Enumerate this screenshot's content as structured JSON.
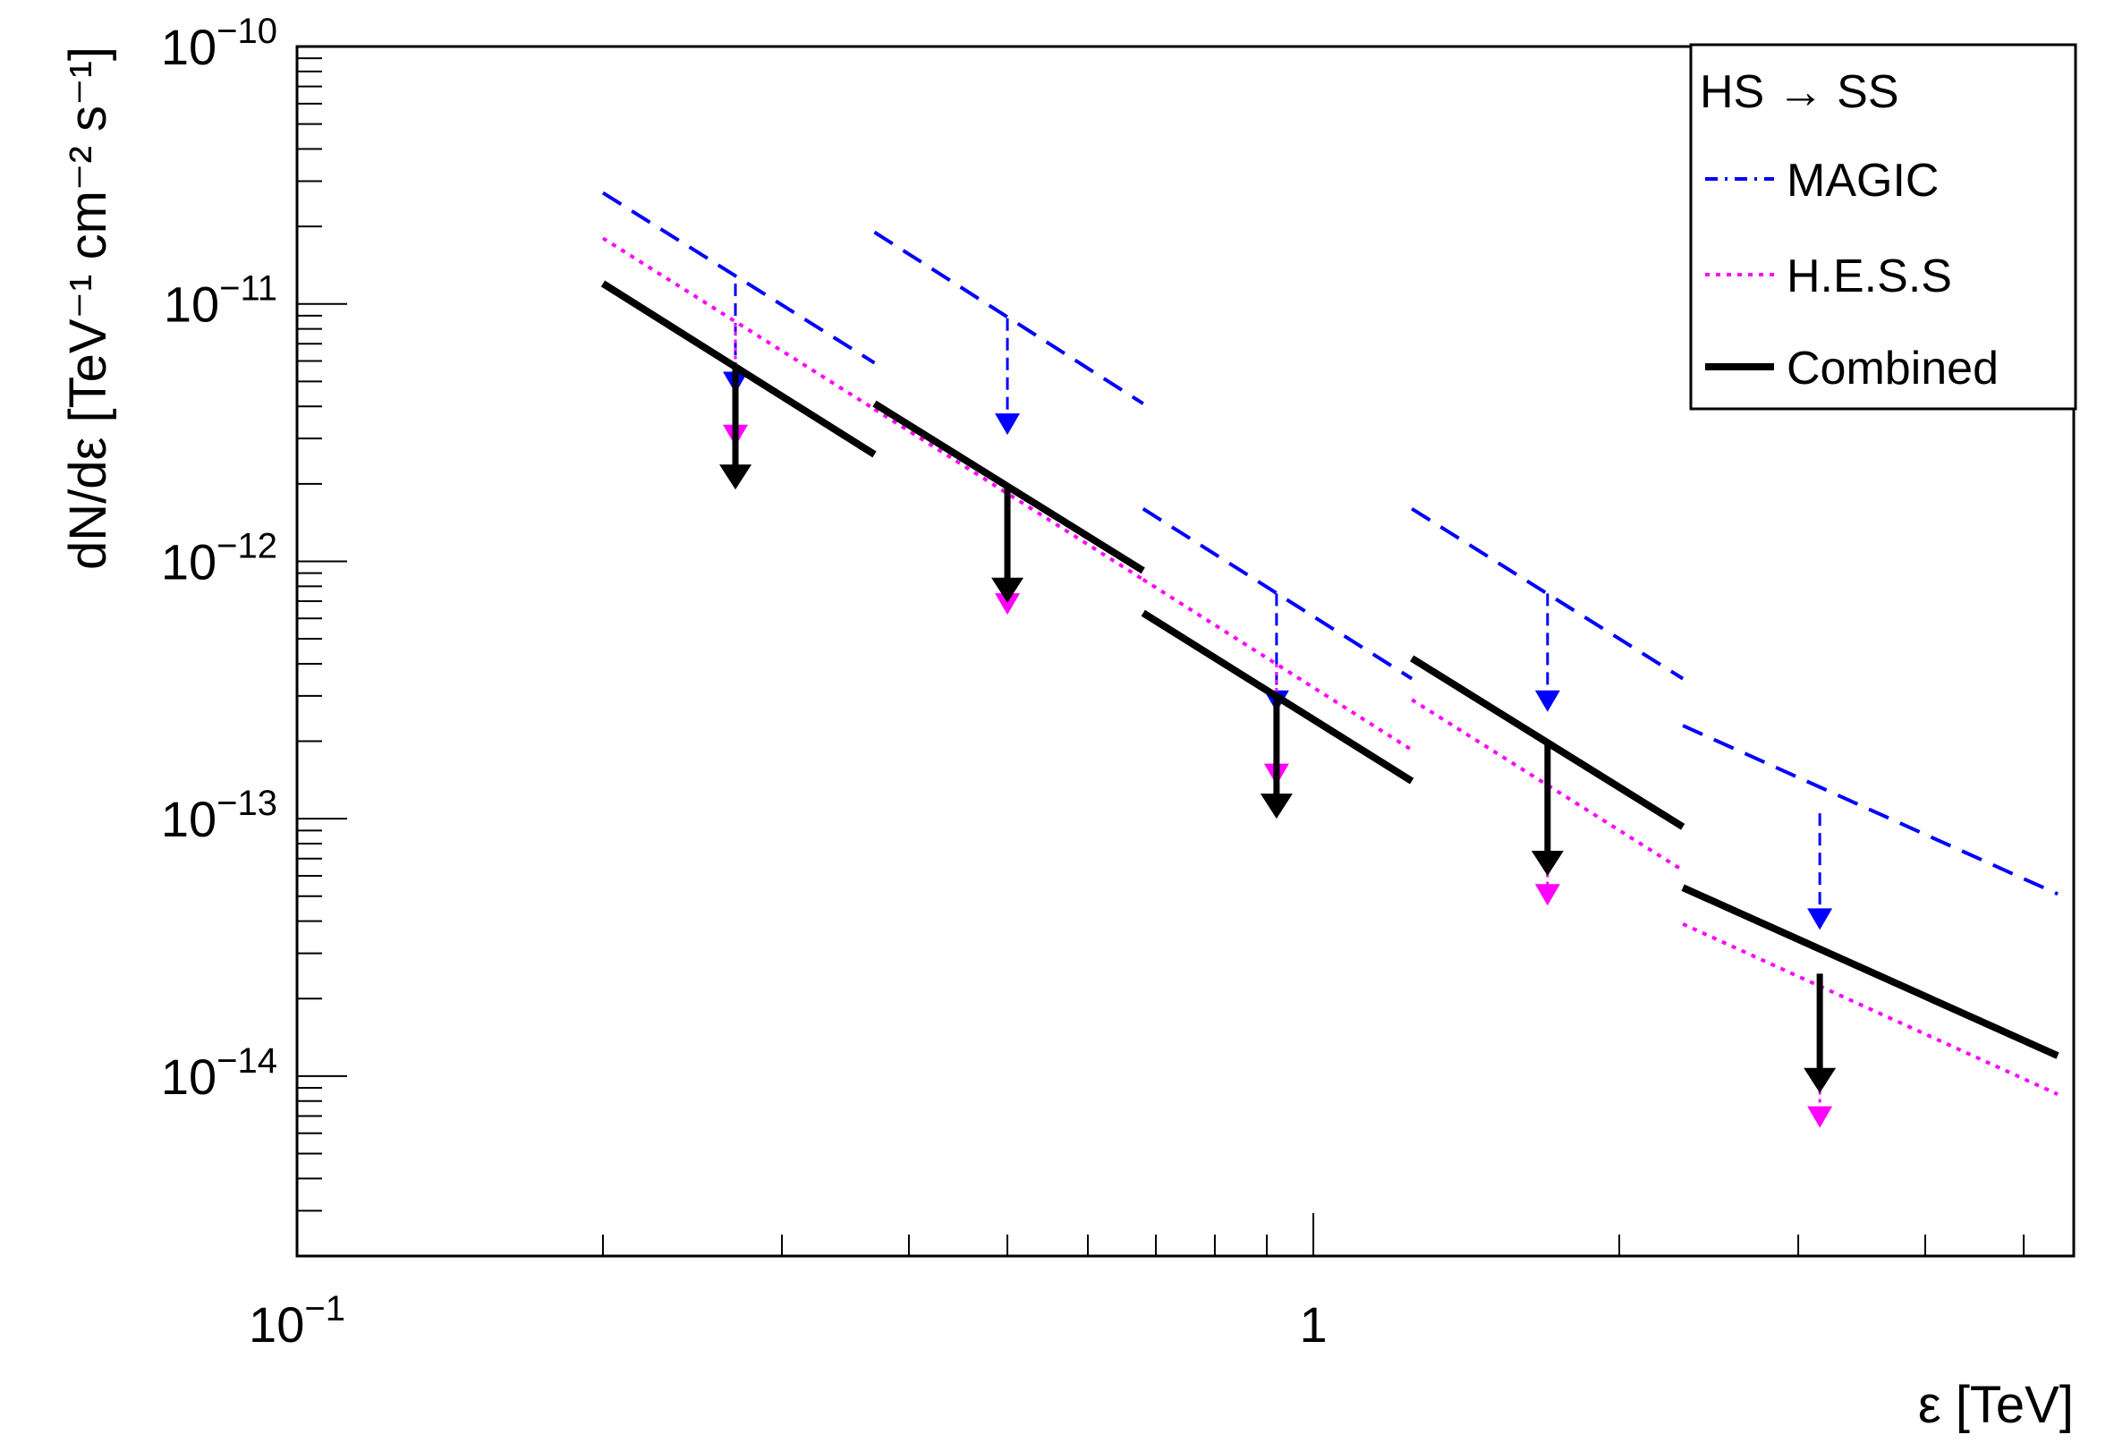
{
  "chart_data": {
    "type": "line",
    "xlabel": "ε [TeV]",
    "ylabel": "dN/dε [TeV⁻¹ cm⁻² s⁻¹]",
    "x_scale": "log",
    "y_scale": "log",
    "xlim": [
      0.1,
      5.6
    ],
    "ylim": [
      2e-15,
      1e-10
    ],
    "x_ticks": [
      {
        "value": 0.1,
        "base": "10",
        "exp": "−1"
      },
      {
        "value": 1,
        "base": "1",
        "exp": ""
      }
    ],
    "y_ticks": [
      {
        "value": 1e-10,
        "base": "10",
        "exp": "−10"
      },
      {
        "value": 1e-11,
        "base": "10",
        "exp": "−11"
      },
      {
        "value": 1e-12,
        "base": "10",
        "exp": "−12"
      },
      {
        "value": 1e-13,
        "base": "10",
        "exp": "−13"
      },
      {
        "value": 1e-14,
        "base": "10",
        "exp": "−14"
      }
    ],
    "legend_position": "top-right",
    "legend_title": "HS → SS",
    "series": [
      {
        "name": "MAGIC",
        "color": "#0000ff",
        "style": "dashed",
        "segments": [
          {
            "x": [
              0.2,
              0.37
            ],
            "y": [
              2.7e-11,
              5.9e-12
            ]
          },
          {
            "x": [
              0.37,
              0.68
            ],
            "y": [
              1.9e-11,
              4.1e-12
            ]
          },
          {
            "x": [
              0.68,
              1.25
            ],
            "y": [
              1.6e-12,
              3.5e-13
            ]
          },
          {
            "x": [
              1.25,
              2.31
            ],
            "y": [
              1.6e-12,
              3.5e-13
            ]
          },
          {
            "x": [
              2.31,
              5.4
            ],
            "y": [
              2.3e-13,
              5.1e-14
            ]
          }
        ],
        "upper_limits": [
          {
            "x": 0.27,
            "y_from": 1.2e-11,
            "y_to": 4.5e-12
          },
          {
            "x": 0.5,
            "y_from": 8.8e-12,
            "y_to": 3.1e-12
          },
          {
            "x": 0.92,
            "y_from": 7.5e-13,
            "y_to": 2.6e-13
          },
          {
            "x": 1.7,
            "y_from": 7.5e-13,
            "y_to": 2.6e-13
          },
          {
            "x": 3.15,
            "y_from": 1.05e-13,
            "y_to": 3.7e-14
          }
        ]
      },
      {
        "name": "H.E.S.S",
        "color": "#ff00ff",
        "style": "dotted",
        "segments": [
          {
            "x": [
              0.2,
              0.37
            ],
            "y": [
              1.8e-11,
              3.9e-12
            ]
          },
          {
            "x": [
              0.37,
              0.68
            ],
            "y": [
              3.9e-12,
              8.5e-13
            ]
          },
          {
            "x": [
              0.68,
              1.25
            ],
            "y": [
              8.5e-13,
              1.85e-13
            ]
          },
          {
            "x": [
              1.25,
              2.31
            ],
            "y": [
              2.9e-13,
              6.3e-14
            ]
          },
          {
            "x": [
              2.31,
              5.4
            ],
            "y": [
              3.9e-14,
              8.5e-15
            ]
          }
        ],
        "upper_limits": [
          {
            "x": 0.27,
            "y_from": 8.4e-12,
            "y_to": 2.8e-12
          },
          {
            "x": 0.5,
            "y_from": 1.8e-12,
            "y_to": 6.2e-13
          },
          {
            "x": 0.92,
            "y_from": 4e-13,
            "y_to": 1.35e-13
          },
          {
            "x": 1.7,
            "y_from": 1.35e-13,
            "y_to": 4.6e-14
          },
          {
            "x": 3.15,
            "y_from": 1.8e-14,
            "y_to": 6.3e-15
          }
        ]
      },
      {
        "name": "Combined",
        "color": "#000000",
        "style": "solid",
        "segments": [
          {
            "x": [
              0.2,
              0.37
            ],
            "y": [
              1.2e-11,
              2.6e-12
            ]
          },
          {
            "x": [
              0.37,
              0.68
            ],
            "y": [
              4.1e-12,
              9.2e-13
            ]
          },
          {
            "x": [
              0.68,
              1.25
            ],
            "y": [
              6.3e-13,
              1.4e-13
            ]
          },
          {
            "x": [
              1.25,
              2.31
            ],
            "y": [
              4.2e-13,
              9.3e-14
            ]
          },
          {
            "x": [
              2.31,
              5.4
            ],
            "y": [
              5.4e-14,
              1.2e-14
            ]
          }
        ],
        "upper_limits": [
          {
            "x": 0.27,
            "y_from": 5.6e-12,
            "y_to": 1.9e-12
          },
          {
            "x": 0.5,
            "y_from": 1.95e-12,
            "y_to": 6.9e-13
          },
          {
            "x": 0.92,
            "y_from": 2.9e-13,
            "y_to": 1e-13
          },
          {
            "x": 1.7,
            "y_from": 1.95e-13,
            "y_to": 6e-14
          },
          {
            "x": 3.15,
            "y_from": 2.5e-14,
            "y_to": 8.6e-15
          }
        ]
      }
    ]
  }
}
